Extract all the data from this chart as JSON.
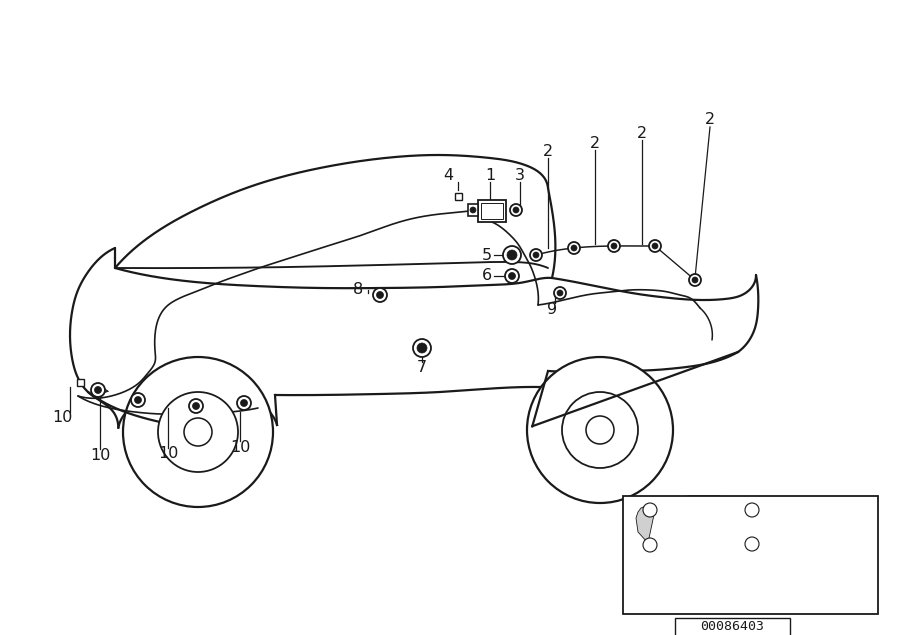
{
  "background_color": "#ffffff",
  "line_color": "#1a1a1a",
  "fig_width": 9.0,
  "fig_height": 6.35,
  "dpi": 100,
  "part_number": "00086403",
  "car_lw": 1.6,
  "wire_lw": 1.2,
  "label_fontsize": 11.5
}
